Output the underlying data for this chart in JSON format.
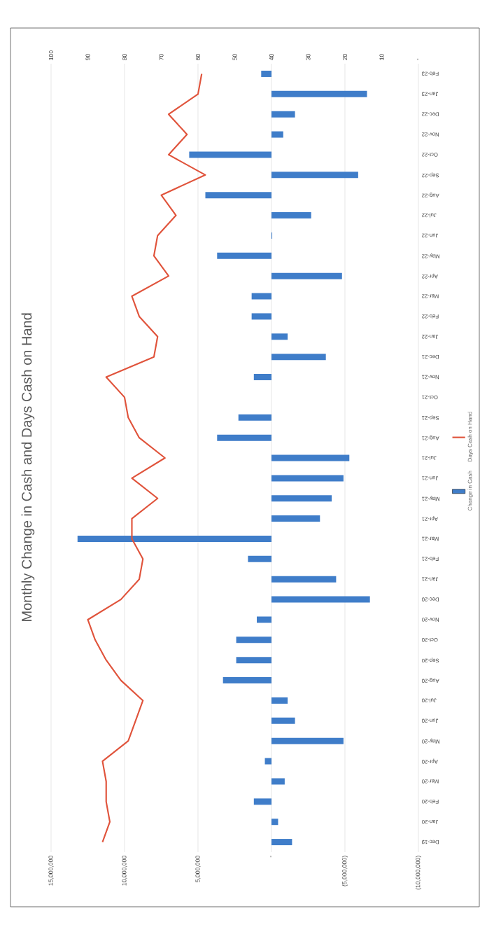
{
  "chart_data": {
    "type": "bar",
    "orientation": "horizontal",
    "title": "Monthly Change in Cash and Days Cash on Hand",
    "categories": [
      "Feb-23",
      "Jan-23",
      "Dec-22",
      "Nov-22",
      "Oct-22",
      "Sep-22",
      "Aug-22",
      "Jul-22",
      "Jun-22",
      "May-22",
      "Apr-22",
      "Mar-22",
      "Feb-22",
      "Jan-22",
      "Dec-21",
      "Nov-21",
      "Oct-21",
      "Sep-21",
      "Aug-21",
      "Jul-21",
      "Jun-21",
      "May-21",
      "Apr-21",
      "Mar-21",
      "Feb-21",
      "Jan-21",
      "Dec-20",
      "Nov-20",
      "Oct-20",
      "Sep-20",
      "Aug-20",
      "Jul-20",
      "Jun-20",
      "May-20",
      "Apr-20",
      "Mar-20",
      "Feb-20",
      "Jan-20",
      "Dec-19"
    ],
    "series": [
      {
        "name": "Change in Cash",
        "color": "#3f7dc9",
        "values": [
          700000,
          -6500000,
          -1600000,
          -800000,
          5600000,
          -5900000,
          4500000,
          -2700000,
          -50000,
          3700000,
          -4800000,
          1350000,
          1350000,
          -1100000,
          -3700000,
          1200000,
          0,
          2250000,
          3700000,
          -5300000,
          -4900000,
          -4100000,
          -3300000,
          13200000,
          1600000,
          -4400000,
          -6700000,
          1000000,
          2400000,
          2400000,
          3300000,
          -1100000,
          -1600000,
          -4900000,
          450000,
          -900000,
          1200000,
          -450000,
          -1400000
        ]
      },
      {
        "name": "Days Cash on Hand",
        "type": "line",
        "axis": "x2",
        "color": "#e0533b",
        "values": [
          59,
          60,
          68,
          63,
          68,
          58,
          70,
          66,
          71,
          72,
          68,
          78,
          76,
          71,
          72,
          85,
          80,
          79,
          76,
          69,
          78,
          71,
          78,
          78,
          75,
          76,
          81,
          90,
          88,
          85,
          81,
          75,
          77,
          79,
          86,
          85,
          85,
          84,
          86
        ]
      }
    ],
    "xlim": [
      15000000,
      -10000000
    ],
    "xticks": [
      {
        "value": 15000000,
        "label": "15,000,000"
      },
      {
        "value": 10000000,
        "label": "10,000,000"
      },
      {
        "value": 5000000,
        "label": "5,000,000"
      },
      {
        "value": 0,
        "label": "-"
      },
      {
        "value": -5000000,
        "label": "(5,000,000)"
      },
      {
        "value": -10000000,
        "label": "(10,000,000)"
      }
    ],
    "x2lim": [
      100,
      0
    ],
    "x2ticks": [
      100,
      90,
      80,
      70,
      60,
      50,
      40,
      30,
      20,
      10,
      {
        "value": 0,
        "label": "-"
      }
    ],
    "grid": "x",
    "legend": "right",
    "marker": "none"
  }
}
